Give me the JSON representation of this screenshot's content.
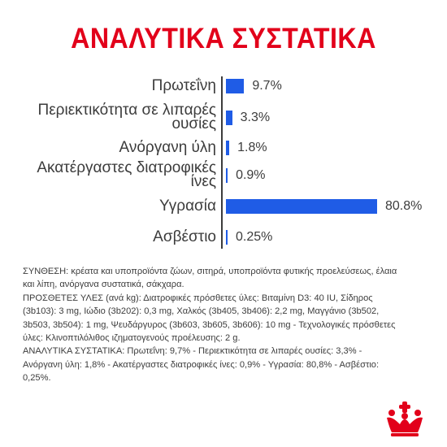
{
  "title": "ΑΝΑΛΥΤΙΚΑ ΣΥΣΤΑΤΙΚΑ",
  "colors": {
    "title_red": "#e2001a",
    "bar_blue": "#1f5ce6",
    "text_gray": "#3c3c3c"
  },
  "chart_data": {
    "type": "bar",
    "orientation": "horizontal",
    "categories": [
      "Πρωτεΐνη",
      "Περιεκτικότητα σε λιπαρές ουσίες",
      "Ανόργανη ύλη",
      "Ακατέργαστες διατροφικές ίνες",
      "Υγρασία",
      "Ασβέστιο"
    ],
    "label_lines": [
      [
        "Πρωτεΐνη"
      ],
      [
        "Περιεκτικότητα σε λιπαρές",
        "ουσίες"
      ],
      [
        "Ανόργανη ύλη"
      ],
      [
        "Ακατέργαστες διατροφικές",
        "ίνες"
      ],
      [
        "Υγρασία"
      ],
      [
        "Ασβέστιο"
      ]
    ],
    "values": [
      9.7,
      3.3,
      1.8,
      0.9,
      80.8,
      0.25
    ],
    "value_labels": [
      "9.7%",
      "3.3%",
      "1.8%",
      "0.9%",
      "80.8%",
      "0.25%"
    ],
    "unit": "%",
    "xlim": [
      0,
      80.8
    ],
    "grid": false,
    "legend": "none"
  },
  "composition_lines": [
    "ΣΥΝΘΕΣΗ: κρέατα και υποπροϊόντα ζώων, σιτηρά, υποπροϊόντα φυτικής προελεύσεως, έλαια",
    "και λίπη, ανόργανα συστατικά, σάκχαρα.",
    "ΠΡΟΣΘΕΤΕΣ ΥΛΕΣ (ανά kg): Διατροφικές πρόσθετες ύλες: Βιταμίνη D3: 40 IU, Σίδηρος",
    "(3b103): 3 mg, Ιώδιο (3b202): 0,3 mg, Χαλκός (3b405, 3b406): 2,2 mg, Μαγγάνιο (3b502,",
    "3b503, 3b504): 1 mg, Ψευδάργυρος (3b603, 3b605, 3b606): 10 mg - Τεχνολογικές πρόσθετες",
    "ύλες: Κλινοπτιλόλιθος ιζηματογενούς προέλευσης: 2 g.",
    "ΑΝΑΛΥΤΙΚΑ ΣΥΣΤΑΤΙΚΑ: Πρωτεΐνη: 9,7% - Περιεκτικότητα σε λιπαρές ουσίες: 3,3% -",
    "Ανόργανη ύλη: 1,8% - Ακατέργαστες διατροφικές ίνες: 0,9% - Υγρασία: 80,8% - Ασβέστιο:",
    "0,25%."
  ],
  "logo": {
    "icon": "royal-canin-crown-icon"
  }
}
